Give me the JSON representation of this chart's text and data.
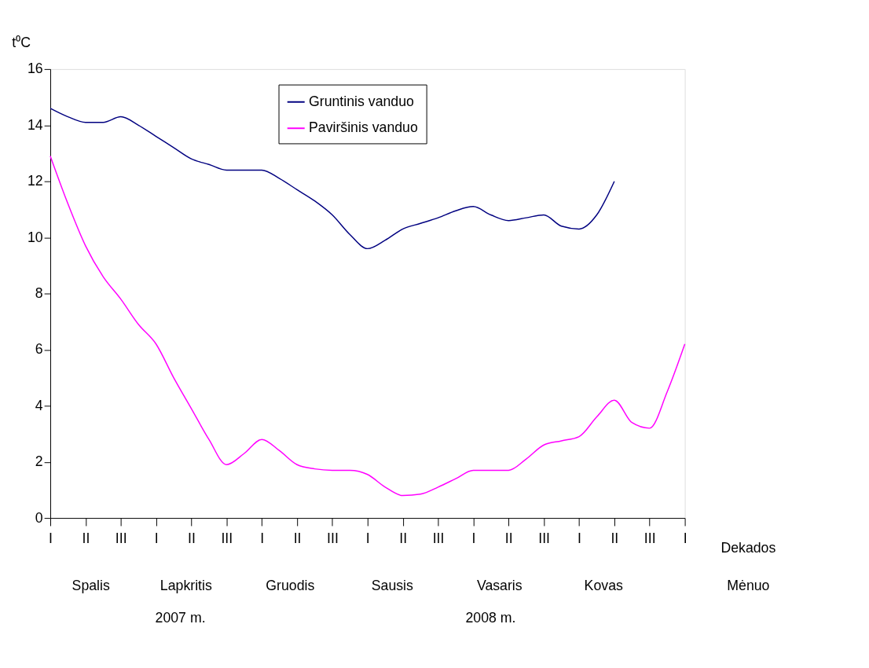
{
  "chart_data": {
    "type": "line",
    "ylabel": "t⁰C",
    "categories": [
      "I",
      null,
      "II",
      null,
      "III",
      null,
      "I",
      null,
      "II",
      null,
      "III",
      null,
      "I",
      null,
      "II",
      null,
      "III",
      null,
      "I",
      null,
      "II",
      null,
      "III",
      null,
      "I",
      null,
      "II",
      null,
      "III",
      null,
      "I",
      null,
      "II",
      null,
      "III",
      null,
      "I"
    ],
    "series": [
      {
        "name": "Gruntinis vanduo",
        "color": "#000080",
        "values": [
          14.6,
          14.3,
          14.1,
          14.1,
          14.3,
          14.0,
          13.6,
          13.2,
          12.8,
          12.6,
          12.4,
          12.4,
          12.4,
          12.1,
          11.7,
          11.3,
          10.8,
          10.1,
          9.6,
          9.9,
          10.3,
          10.5,
          10.7,
          10.95,
          11.1,
          10.8,
          10.6,
          10.7,
          10.8,
          10.4,
          10.3,
          10.8,
          12.0,
          null,
          null,
          null,
          null
        ]
      },
      {
        "name": "Paviršinis vanduo",
        "color": "#ff00ff",
        "values": [
          12.9,
          11.2,
          9.7,
          8.6,
          7.8,
          6.9,
          6.2,
          5.0,
          3.9,
          2.8,
          1.9,
          2.3,
          2.8,
          2.4,
          1.9,
          1.75,
          1.7,
          1.7,
          1.55,
          1.1,
          0.8,
          0.85,
          1.1,
          1.4,
          1.7,
          1.7,
          1.7,
          2.1,
          2.6,
          2.75,
          2.9,
          3.6,
          4.2,
          3.4,
          3.2,
          4.5,
          6.2
        ]
      }
    ],
    "ylim": [
      0,
      16
    ],
    "yticks": [
      0,
      2,
      4,
      6,
      8,
      10,
      12,
      14,
      16
    ],
    "annotations": [
      "Dekados",
      "Spalis",
      "Lapkritis",
      "Gruodis",
      "Sausis",
      "Vasaris",
      "Kovas",
      "Mėnuo",
      "2007 m.",
      "2008 m."
    ],
    "grid": false,
    "legend": "top",
    "line_style": "solid",
    "marker": "none"
  }
}
